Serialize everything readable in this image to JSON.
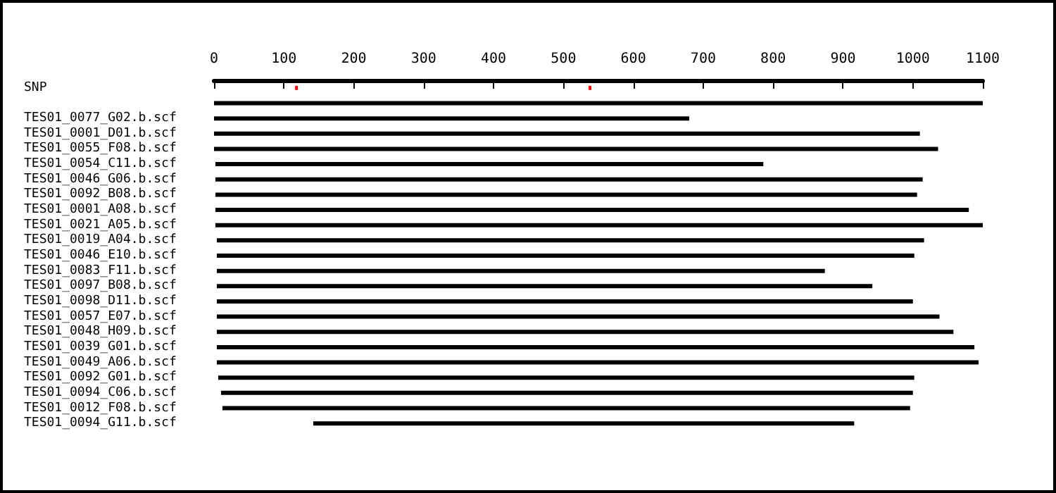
{
  "chart_data": {
    "type": "bar",
    "orientation": "horizontal",
    "categories": [
      "SNP",
      null,
      "TES01_0077_G02.b.scf",
      "TES01_0001_D01.b.scf",
      "TES01_0055_F08.b.scf",
      "TES01_0054_C11.b.scf",
      "TES01_0046_G06.b.scf",
      "TES01_0092_B08.b.scf",
      "TES01_0001_A08.b.scf",
      "TES01_0021_A05.b.scf",
      "TES01_0019_A04.b.scf",
      "TES01_0046_E10.b.scf",
      "TES01_0083_F11.b.scf",
      "TES01_0097_B08.b.scf",
      "TES01_0098_D11.b.scf",
      "TES01_0057_E07.b.scf",
      "TES01_0048_H09.b.scf",
      "TES01_0039_G01.b.scf",
      "TES01_0049_A06.b.scf",
      "TES01_0092_G01.b.scf",
      "TES01_0094_C06.b.scf",
      "TES01_0012_F08.b.scf",
      "TES01_0094_G11.b.scf"
    ],
    "series": [
      {
        "color": "#000000",
        "base": [
          null,
          0,
          0,
          0,
          0,
          2,
          2,
          2,
          2,
          2,
          4,
          4,
          4,
          4,
          4,
          4,
          4,
          4,
          4,
          6,
          10,
          12,
          142
        ],
        "values": [
          null,
          1100,
          680,
          1010,
          1036,
          784,
          1012,
          1004,
          1078,
          1098,
          1012,
          998,
          870,
          938,
          996,
          1034,
          1054,
          1084,
          1090,
          996,
          990,
          984,
          774
        ]
      },
      {
        "color": "#ff0000",
        "base": [
          116,
          null,
          null,
          null,
          null,
          null,
          null,
          null,
          null,
          null,
          null,
          null,
          null,
          null,
          null,
          null,
          null,
          null,
          null,
          null,
          null,
          null,
          null
        ],
        "values": [
          4,
          null,
          null,
          null,
          null,
          null,
          null,
          null,
          null,
          null,
          null,
          null,
          null,
          null,
          null,
          null,
          null,
          null,
          null,
          null,
          null,
          null,
          null
        ]
      },
      {
        "color": "#ff0000",
        "base": [
          536,
          null,
          null,
          null,
          null,
          null,
          null,
          null,
          null,
          null,
          null,
          null,
          null,
          null,
          null,
          null,
          null,
          null,
          null,
          null,
          null,
          null,
          null
        ],
        "values": [
          4,
          null,
          null,
          null,
          null,
          null,
          null,
          null,
          null,
          null,
          null,
          null,
          null,
          null,
          null,
          null,
          null,
          null,
          null,
          null,
          null,
          null,
          null
        ]
      }
    ],
    "xlim": [
      0,
      1100
    ],
    "xticks": [
      0,
      100,
      200,
      300,
      400,
      500,
      600,
      700,
      800,
      900,
      1000,
      1100
    ],
    "grid": false
  }
}
